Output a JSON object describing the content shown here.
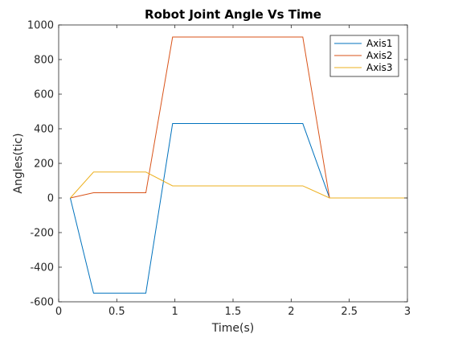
{
  "chart_data": {
    "type": "line",
    "title": "Robot Joint Angle Vs Time",
    "xlabel": "Time(s)",
    "ylabel": "Angles(tic)",
    "xlim": [
      0,
      3
    ],
    "ylim": [
      -600,
      1000
    ],
    "x_ticks": [
      "0",
      "0.5",
      "1",
      "1.5",
      "2",
      "2.5",
      "3"
    ],
    "y_ticks": [
      "-600",
      "-400",
      "-200",
      "0",
      "200",
      "400",
      "600",
      "800",
      "1000"
    ],
    "grid": false,
    "legend_position": "top-right",
    "series": [
      {
        "name": "Axis1",
        "color": "#0072BD",
        "points": [
          [
            0.1,
            0
          ],
          [
            0.3,
            -550
          ],
          [
            0.75,
            -550
          ],
          [
            0.98,
            430
          ],
          [
            2.1,
            430
          ],
          [
            2.33,
            0
          ],
          [
            3.0,
            0
          ]
        ]
      },
      {
        "name": "Axis2",
        "color": "#D95319",
        "points": [
          [
            0.1,
            0
          ],
          [
            0.3,
            30
          ],
          [
            0.75,
            30
          ],
          [
            0.98,
            930
          ],
          [
            2.1,
            930
          ],
          [
            2.33,
            0
          ],
          [
            3.0,
            0
          ]
        ]
      },
      {
        "name": "Axis3",
        "color": "#EDB120",
        "points": [
          [
            0.1,
            0
          ],
          [
            0.3,
            150
          ],
          [
            0.75,
            150
          ],
          [
            0.98,
            70
          ],
          [
            2.1,
            70
          ],
          [
            2.33,
            0
          ],
          [
            3.0,
            0
          ]
        ]
      }
    ]
  }
}
